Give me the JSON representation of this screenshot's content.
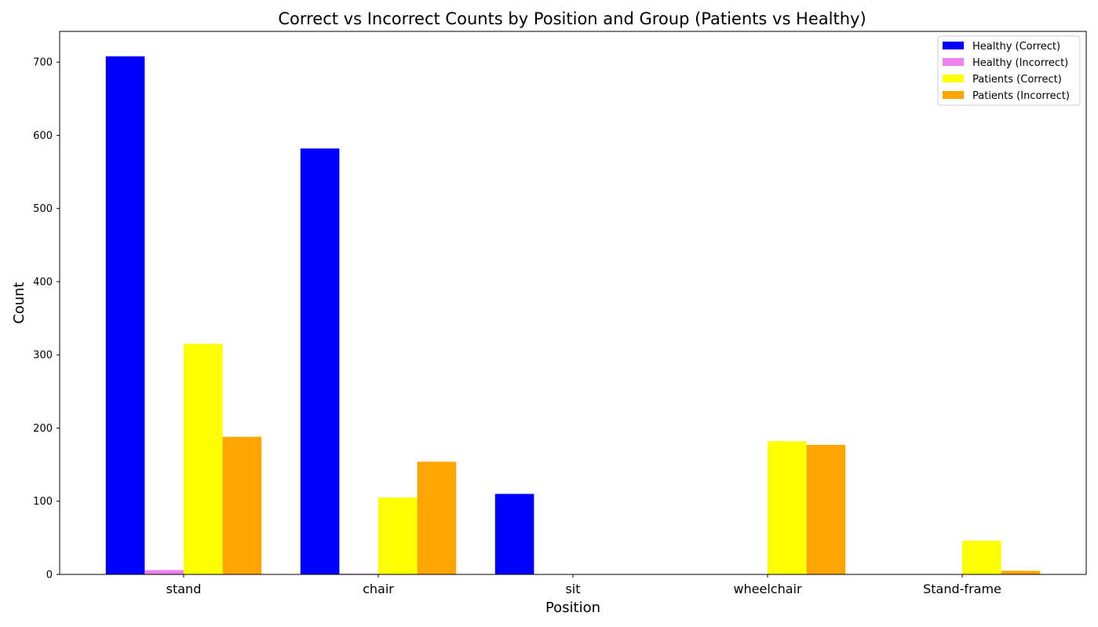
{
  "chart_data": {
    "type": "bar",
    "title": "Correct vs Incorrect Counts by Position and Group (Patients vs Healthy)",
    "xlabel": "Position",
    "ylabel": "Count",
    "categories": [
      "stand",
      "chair",
      "sit",
      "wheelchair",
      "Stand-frame"
    ],
    "ylim": [
      0,
      742
    ],
    "yticks": [
      0,
      100,
      200,
      300,
      400,
      500,
      600,
      700
    ],
    "grid": false,
    "legend_position": "top-right",
    "series": [
      {
        "name": "Healthy (Correct)",
        "color": "#0000ff",
        "values": [
          708,
          582,
          110,
          0,
          0
        ]
      },
      {
        "name": "Healthy (Incorrect)",
        "color": "#ee82ee",
        "values": [
          6,
          1,
          0,
          0,
          0
        ]
      },
      {
        "name": "Patients (Correct)",
        "color": "#ffff00",
        "values": [
          315,
          105,
          0,
          182,
          46
        ]
      },
      {
        "name": "Patients (Incorrect)",
        "color": "#ffa500",
        "values": [
          188,
          154,
          0,
          177,
          5
        ]
      }
    ]
  }
}
